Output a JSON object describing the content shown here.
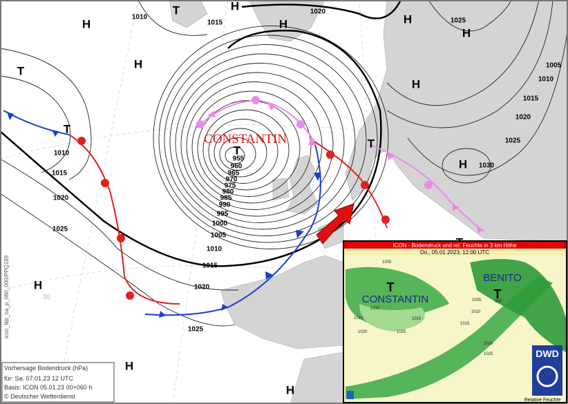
{
  "map": {
    "pressure_centers": [
      "H",
      "T",
      "H",
      "H",
      "H",
      "H",
      "T",
      "H",
      "H",
      "T",
      "T",
      "T",
      "H",
      "H",
      "H",
      "H",
      "T"
    ],
    "isobar_labels": [
      "1010",
      "1015",
      "1020",
      "1025",
      "1005",
      "1010",
      "1015",
      "1020",
      "1025",
      "1030",
      "1010",
      "1015",
      "1020",
      "1025",
      "1020",
      "1025",
      "955",
      "960",
      "965",
      "970",
      "975",
      "980",
      "985",
      "990",
      "995",
      "1000",
      "1005",
      "1010",
      "1015"
    ],
    "storm_name": "CONSTANTIN",
    "grid_label": "30",
    "side_code": "icon_tkb_na_p_060_000/PPQ189",
    "legend": {
      "title": "Vorhersage Bodendruck (hPa)",
      "valid": "für: Sa. 07.01.23  12 UTC",
      "basis": "Basis: ICON  05.01.23 00+060 h",
      "copyright": "© Deutscher Wetterdienst"
    },
    "inset": {
      "title": "ICON - Bodendruck und rel. Feuchte in 3 km Höhe",
      "time": "Do., 05.01.2023, 12:00 UTC",
      "storm_1": "CONSTANTIN",
      "storm_2": "BENITO",
      "low_1": "T",
      "low_2": "T",
      "logo": "DWD",
      "footer": "Relative Feuchte",
      "labels": [
        "1005",
        "1010",
        "1010",
        "1015",
        "1020",
        "1025",
        "990",
        "1005",
        "1010",
        "1015",
        "1020",
        "1025"
      ]
    }
  }
}
